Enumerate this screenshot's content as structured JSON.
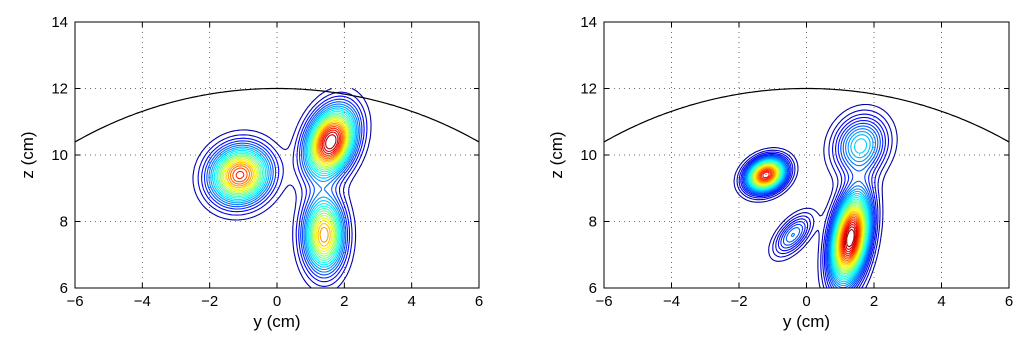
{
  "chart_data": [
    {
      "type": "contour",
      "xlabel": "y (cm)",
      "ylabel": "z (cm)",
      "xlim": [
        -6,
        6
      ],
      "ylim": [
        6,
        14
      ],
      "xticks": [
        -6,
        -4,
        -2,
        0,
        2,
        4,
        6
      ],
      "yticks": [
        6,
        8,
        10,
        12,
        14
      ],
      "grid": true,
      "grid_style": "dotted",
      "colormap": "jet",
      "domain": {
        "y": [
          -4,
          4
        ],
        "z": [
          6,
          12
        ]
      },
      "boundary_arc": {
        "center_y": 0,
        "center_z": 0,
        "radius": 12
      },
      "peaks": [
        {
          "y": -1.1,
          "z": 9.4,
          "sy": 0.6,
          "sz": 0.55,
          "amp": 0.85,
          "rot": -35
        },
        {
          "y": 1.6,
          "z": 10.4,
          "sy": 0.45,
          "sz": 0.7,
          "amp": 1.0,
          "rot": 20
        },
        {
          "y": 1.4,
          "z": 7.6,
          "sy": 0.4,
          "sz": 0.75,
          "amp": 0.75,
          "rot": 0
        }
      ],
      "levels": 24
    },
    {
      "type": "contour",
      "xlabel": "y (cm)",
      "ylabel": "z (cm)",
      "xlim": [
        -6,
        6
      ],
      "ylim": [
        6,
        14
      ],
      "xticks": [
        -6,
        -4,
        -2,
        0,
        2,
        4,
        6
      ],
      "yticks": [
        6,
        8,
        10,
        12,
        14
      ],
      "grid": true,
      "grid_style": "dotted",
      "colormap": "jet",
      "domain": {
        "y": [
          -4,
          4
        ],
        "z": [
          6,
          12
        ]
      },
      "boundary_arc": {
        "center_y": 0,
        "center_z": 0,
        "radius": 12
      },
      "peaks": [
        {
          "y": -1.2,
          "z": 9.4,
          "sy": 0.4,
          "sz": 0.3,
          "amp": 0.9,
          "rot": -30
        },
        {
          "y": 1.3,
          "z": 7.5,
          "sy": 0.35,
          "sz": 0.9,
          "amp": 1.0,
          "rot": 10
        },
        {
          "y": 1.6,
          "z": 10.3,
          "sy": 0.5,
          "sz": 0.6,
          "amp": 0.35,
          "rot": 25
        },
        {
          "y": -0.4,
          "z": 7.6,
          "sy": 0.25,
          "sz": 0.5,
          "amp": 0.25,
          "rot": 40
        }
      ],
      "levels": 32
    }
  ]
}
